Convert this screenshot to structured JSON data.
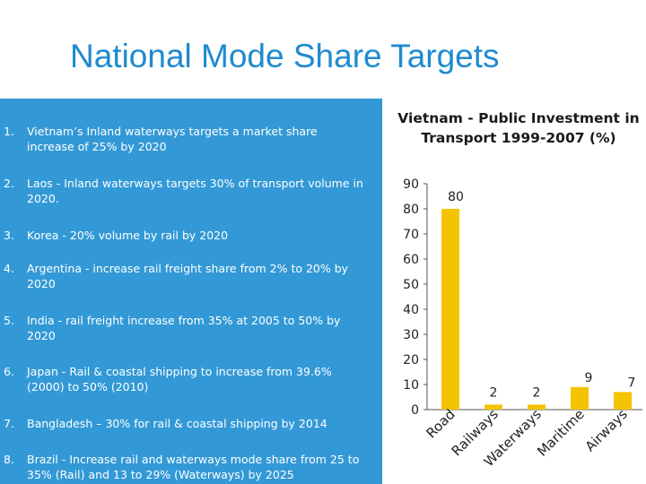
{
  "slide": {
    "title": "National Mode Share Targets"
  },
  "targets": [
    {
      "number": "1.",
      "text": "Vietnam’s Inland waterways targets a market share increase of 25% by 2020"
    },
    {
      "number": "2.",
      "text": "Laos - Inland waterways targets 30% of transport volume in 2020."
    },
    {
      "number": "3.",
      "text": "Korea - 20% volume by rail by 2020"
    },
    {
      "number": "4.",
      "text": "Argentina - increase rail freight share from 2% to 20% by 2020"
    },
    {
      "number": "5.",
      "text": "India - rail freight increase from 35% at 2005 to 50% by 2020"
    },
    {
      "number": "6.",
      "text": "Japan - Rail & coastal shipping to increase from 39.6% (2000) to 50% (2010)"
    },
    {
      "number": "7.",
      "text": "Bangladesh – 30% for rail & coastal shipping by 2014"
    },
    {
      "number": "8.",
      "text": "Brazil - Increase rail and waterways mode share from 25 to 35% (Rail) and 13 to 29% (Waterways) by 2025"
    }
  ],
  "colors": {
    "title": "#1f8ad0",
    "panel": "#3399d6",
    "bar": "#f5c400"
  },
  "chart_data": {
    "type": "bar",
    "title": "Vietnam - Public Investment in Transport 1999-2007 (%)",
    "categories": [
      "Road",
      "Railways",
      "Waterways",
      "Maritime",
      "Airways"
    ],
    "values": [
      80,
      2,
      2,
      9,
      7
    ],
    "data_labels": [
      "80",
      "2",
      "2",
      "9",
      "7"
    ],
    "yticks": [
      "0",
      "10",
      "20",
      "30",
      "40",
      "50",
      "60",
      "70",
      "80",
      "90"
    ],
    "ylim": [
      0,
      90
    ],
    "grid": false,
    "legend": "none"
  }
}
